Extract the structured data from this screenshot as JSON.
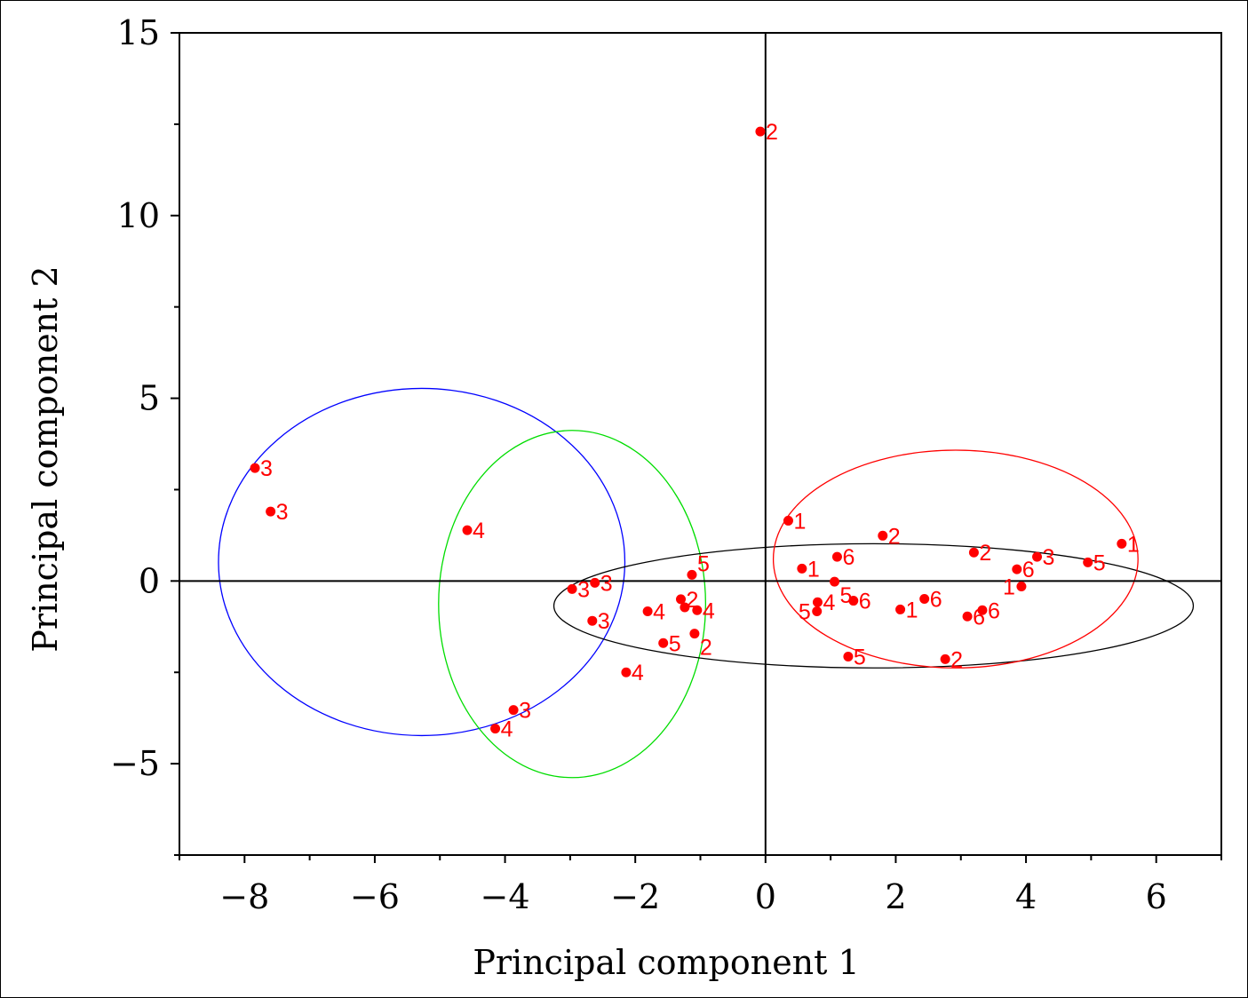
{
  "chart_data": {
    "type": "scatter",
    "title": "",
    "xlabel": "Principal component 1",
    "ylabel": "Principal component 2",
    "xlim": [
      -9,
      7
    ],
    "ylim": [
      -7.5,
      15
    ],
    "xticks": [
      -8,
      -6,
      -4,
      -2,
      0,
      2,
      4,
      6
    ],
    "xtick_labels": [
      "−8",
      "−6",
      "−4",
      "−2",
      "0",
      "2",
      "4",
      "6"
    ],
    "yticks": [
      -5,
      0,
      5,
      10,
      15
    ],
    "ytick_labels": [
      "−5",
      "0",
      "5",
      "10",
      "15"
    ],
    "grid": false,
    "point_color": "#ff0000",
    "points": [
      {
        "x": -0.08,
        "y": 12.3,
        "label": "2"
      },
      {
        "x": -7.84,
        "y": 3.09,
        "label": "3"
      },
      {
        "x": -7.6,
        "y": 1.9,
        "label": "3"
      },
      {
        "x": -4.58,
        "y": 1.39,
        "label": "4"
      },
      {
        "x": -2.97,
        "y": -0.22,
        "label": "3"
      },
      {
        "x": -2.62,
        "y": -0.05,
        "label": "3"
      },
      {
        "x": -2.66,
        "y": -1.09,
        "label": "3"
      },
      {
        "x": -3.87,
        "y": -3.53,
        "label": "3"
      },
      {
        "x": -4.15,
        "y": -4.04,
        "label": "4"
      },
      {
        "x": -2.14,
        "y": -2.5,
        "label": "4"
      },
      {
        "x": -1.81,
        "y": -0.83,
        "label": "4"
      },
      {
        "x": -1.3,
        "y": -0.5,
        "label": "2"
      },
      {
        "x": -1.24,
        "y": -0.72,
        "label": ""
      },
      {
        "x": -1.05,
        "y": -0.8,
        "label": "4"
      },
      {
        "x": -1.13,
        "y": 0.17,
        "label": "5"
      },
      {
        "x": -1.57,
        "y": -1.7,
        "label": "5"
      },
      {
        "x": -1.09,
        "y": -1.44,
        "label": "2"
      },
      {
        "x": 0.35,
        "y": 1.65,
        "label": "1"
      },
      {
        "x": 0.56,
        "y": 0.34,
        "label": "1"
      },
      {
        "x": 1.1,
        "y": 0.66,
        "label": "6"
      },
      {
        "x": 1.06,
        "y": -0.02,
        "label": "5"
      },
      {
        "x": 0.8,
        "y": -0.58,
        "label": "4"
      },
      {
        "x": 0.79,
        "y": -0.83,
        "label": "5"
      },
      {
        "x": 1.35,
        "y": -0.54,
        "label": "6"
      },
      {
        "x": 1.27,
        "y": -2.07,
        "label": "5"
      },
      {
        "x": 1.8,
        "y": 1.24,
        "label": "2"
      },
      {
        "x": 2.07,
        "y": -0.78,
        "label": "1"
      },
      {
        "x": 2.44,
        "y": -0.49,
        "label": "6"
      },
      {
        "x": 2.76,
        "y": -2.14,
        "label": "2"
      },
      {
        "x": 3.2,
        "y": 0.78,
        "label": "2"
      },
      {
        "x": 3.1,
        "y": -0.97,
        "label": "6"
      },
      {
        "x": 3.33,
        "y": -0.8,
        "label": "6"
      },
      {
        "x": 3.86,
        "y": 0.32,
        "label": "6"
      },
      {
        "x": 4.17,
        "y": 0.66,
        "label": "3"
      },
      {
        "x": 3.93,
        "y": -0.15,
        "label": "1"
      },
      {
        "x": 4.95,
        "y": 0.51,
        "label": "5"
      },
      {
        "x": 5.47,
        "y": 1.02,
        "label": "1"
      }
    ],
    "ellipses": [
      {
        "color": "#0000ff",
        "cx": -5.28,
        "cy": 0.52,
        "rx": 3.12,
        "ry": 4.75
      },
      {
        "color": "#00dd00",
        "cx": -2.97,
        "cy": -0.63,
        "rx": 2.05,
        "ry": 4.75
      },
      {
        "color": "#000000",
        "cx": 1.66,
        "cy": -0.68,
        "rx": 4.91,
        "ry": 1.7
      },
      {
        "color": "#ff0000",
        "cx": 2.92,
        "cy": 0.6,
        "rx": 2.8,
        "ry": 2.98
      }
    ]
  }
}
